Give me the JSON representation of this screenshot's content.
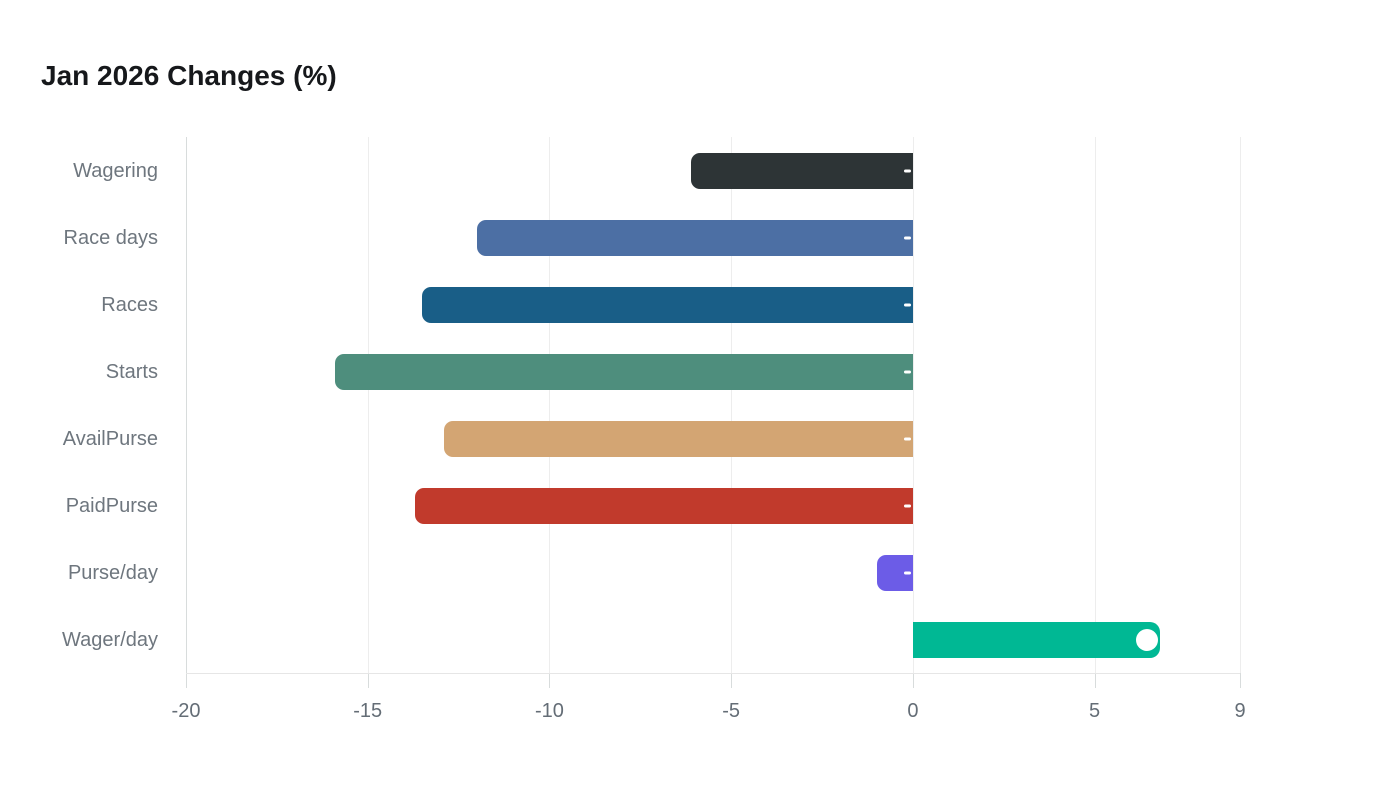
{
  "chart_data": {
    "type": "bar",
    "orientation": "horizontal",
    "title": "Jan 2026 Changes (%)",
    "categories": [
      "Wagering",
      "Race days",
      "Races",
      "Starts",
      "AvailPurse",
      "PaidPurse",
      "Purse/day",
      "Wager/day"
    ],
    "values": [
      -6.1,
      -12.0,
      -13.5,
      -15.9,
      -12.9,
      -13.7,
      -1.0,
      6.8
    ],
    "bar_colors": [
      "#2d3436",
      "#4c6fa4",
      "#195e87",
      "#4e8e7d",
      "#d3a573",
      "#c13a2c",
      "#6c5ce7",
      "#00b894"
    ],
    "xlabel": "",
    "ylabel": "",
    "xlim": [
      -20,
      9
    ],
    "xticks": [
      -20,
      -15,
      -10,
      -5,
      0,
      5,
      9
    ],
    "xtick_labels": [
      "-20",
      "-15",
      "-10",
      "-5",
      "0",
      "5",
      "9"
    ],
    "grid": "vertical-gridlines-on",
    "legend": "none",
    "value_label_color": "#ffffff"
  },
  "theme": {
    "background": "#ffffff",
    "title_color": "#16181b",
    "category_label_color": "#6e767e",
    "tick_label_color": "#646d76",
    "gridline_color": "#ededed",
    "axis_spine_color": "#d8dcdc",
    "axis_line_color": "#e6e6e6"
  }
}
